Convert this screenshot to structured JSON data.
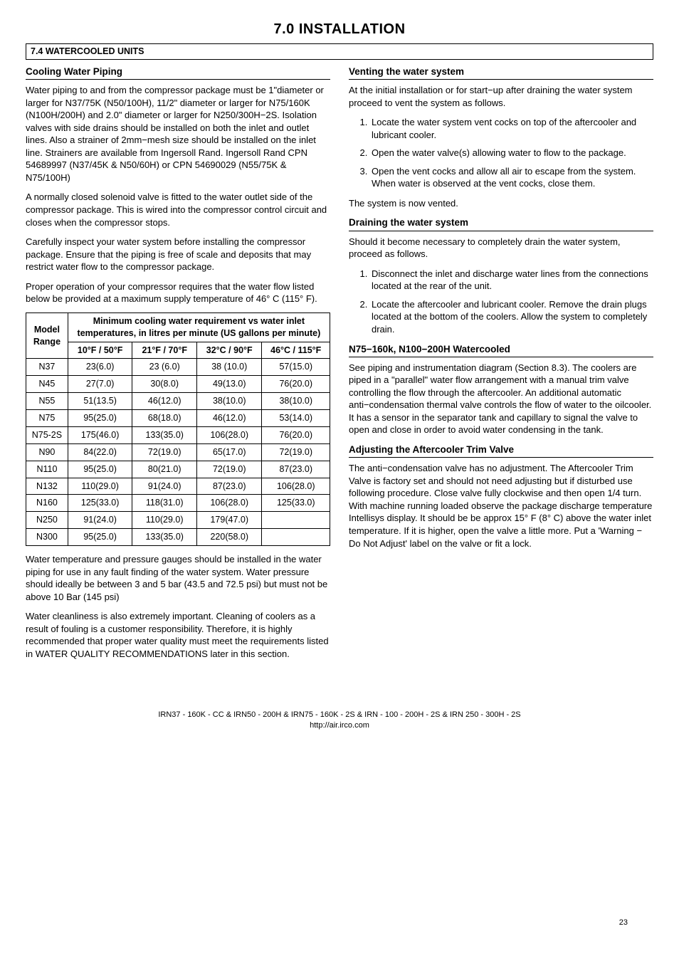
{
  "page": {
    "title": "7.0 INSTALLATION",
    "section_bar": "7.4 WATERCOOLED UNITS",
    "footer_line": "IRN37 - 160K - CC & IRN50 - 200H & IRN75 - 160K - 2S & IRN - 100 - 200H - 2S & IRN 250 - 300H - 2S",
    "footer_url": "http://air.irco.com",
    "page_number": "23"
  },
  "left": {
    "h_cooling": "Cooling Water Piping",
    "p1": "Water piping to and from the compressor package must be 1\"diameter or larger for N37/75K (N50/100H), 11/2\" diameter or larger for N75/160K (N100H/200H) and 2.0\" diameter or larger for N250/300H−2S. Isolation valves with side drains should be installed on both the inlet and outlet lines. Also a strainer of 2mm−mesh size should be installed on the inlet line. Strainers are available from Ingersoll Rand. Ingersoll Rand CPN 54689997 (N37/45K & N50/60H) or CPN 54690029 (N55/75K & N75/100H)",
    "p2": "A normally closed solenoid valve is fitted to the water outlet side of the compressor package. This is wired into the compressor control circuit and closes when the compressor stops.",
    "p3": "Carefully inspect your water system before installing the compressor package. Ensure that the piping is free of scale and deposits that may restrict water flow to the compressor package.",
    "p4": "Proper operation of your compressor requires that the water flow listed below be provided at a maximum supply temperature of 46° C (115° F).",
    "table": {
      "head_model": "Model Range",
      "head_span": "Minimum cooling water requirement vs water inlet temperatures, in litres per minute (US gallons per minute)",
      "cols": [
        "10°F / 50°F",
        "21°F / 70°F",
        "32°C / 90°F",
        "46°C / 115°F"
      ],
      "rows": [
        [
          "N37",
          "23(6.0)",
          "23 (6.0)",
          "38 (10.0)",
          "57(15.0)"
        ],
        [
          "N45",
          "27(7.0)",
          "30(8.0)",
          "49(13.0)",
          "76(20.0)"
        ],
        [
          "N55",
          "51(13.5)",
          "46(12.0)",
          "38(10.0)",
          "38(10.0)"
        ],
        [
          "N75",
          "95(25.0)",
          "68(18.0)",
          "46(12.0)",
          "53(14.0)"
        ],
        [
          "N75-2S",
          "175(46.0)",
          "133(35.0)",
          "106(28.0)",
          "76(20.0)"
        ],
        [
          "N90",
          "84(22.0)",
          "72(19.0)",
          "65(17.0)",
          "72(19.0)"
        ],
        [
          "N110",
          "95(25.0)",
          "80(21.0)",
          "72(19.0)",
          "87(23.0)"
        ],
        [
          "N132",
          "110(29.0)",
          "91(24.0)",
          "87(23.0)",
          "106(28.0)"
        ],
        [
          "N160",
          "125(33.0)",
          "118(31.0)",
          "106(28.0)",
          "125(33.0)"
        ],
        [
          "N250",
          "91(24.0)",
          "110(29.0)",
          "179(47.0)",
          ""
        ],
        [
          "N300",
          "95(25.0)",
          "133(35.0)",
          "220(58.0)",
          ""
        ]
      ]
    },
    "p5": "Water temperature and pressure gauges should be installed in the water piping for use in any fault finding of the water system. Water pressure should ideally be between 3 and 5 bar (43.5 and 72.5 psi) but must not be above 10 Bar (145 psi)",
    "p6": "Water cleanliness is also extremely important. Cleaning of coolers as a result of fouling is a customer responsibility. Therefore, it is highly recommended that proper water quality must meet the requirements listed in WATER QUALITY RECOMMENDATIONS later in this section."
  },
  "right": {
    "h_venting": "Venting the water system",
    "vent_p1": "At the initial installation or for start−up after draining the water system proceed to vent the system as follows.",
    "vent_list": [
      "Locate the water system vent cocks on top of the aftercooler and lubricant cooler.",
      "Open the water valve(s) allowing water to flow to the package.",
      "Open the vent cocks and allow all air to escape from the system. When water is observed at the vent cocks, close them."
    ],
    "vent_p2": "The system is now vented.",
    "h_drain": "Draining the water system",
    "drain_p1": "Should it become necessary to completely drain the water system, proceed as follows.",
    "drain_list": [
      "Disconnect the inlet and discharge water lines from the connections located at the rear of the unit.",
      "Locate the aftercooler and lubricant cooler. Remove the drain plugs located at the bottom of the coolers. Allow the system to completely drain."
    ],
    "h_wc": "N75−160k, N100−200H Watercooled",
    "wc_p1": "See piping and instrumentation diagram (Section 8.3). The coolers are piped in a \"parallel\" water flow arrangement with a manual trim valve controlling the flow through the aftercooler. An additional automatic anti−condensation thermal valve controls the flow of water to the oilcooler. It has a sensor in the separator tank and capillary to signal the valve to open and close in order to avoid water condensing in the tank.",
    "h_adj": "Adjusting the Aftercooler Trim Valve",
    "adj_p1": "The anti−condensation valve has no adjustment. The Aftercooler Trim Valve is factory set and should not need adjusting but if disturbed use following procedure. Close valve fully clockwise and then open 1/4 turn. With machine running loaded observe the package discharge temperature Intellisys display. It should be be approx 15° F (8° C) above the water inlet temperature. If it is higher, open the valve a little more. Put a 'Warning − Do Not Adjust' label on the valve or fit a lock."
  }
}
